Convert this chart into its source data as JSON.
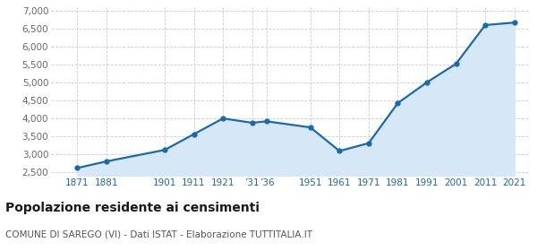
{
  "years": [
    1871,
    1881,
    1901,
    1911,
    1921,
    1931,
    1936,
    1951,
    1961,
    1971,
    1981,
    1991,
    2001,
    2011,
    2021
  ],
  "population": [
    2615,
    2800,
    3120,
    3560,
    4000,
    3880,
    3920,
    3750,
    3090,
    3310,
    4430,
    5010,
    5530,
    6610,
    6680
  ],
  "x_ticks_positions": [
    1871,
    1881,
    1901,
    1911,
    1921,
    1931,
    1936,
    1951,
    1961,
    1971,
    1981,
    1991,
    2001,
    2011,
    2021
  ],
  "x_tick_display": [
    "1871",
    "1881",
    "1901",
    "1911",
    "1921",
    "’31",
    "’36",
    "1951",
    "1961",
    "1971",
    "1981",
    "1991",
    "2001",
    "2011",
    "2021"
  ],
  "xlim": [
    1862,
    2026
  ],
  "ylim": [
    2400,
    7100
  ],
  "yticks": [
    2500,
    3000,
    3500,
    4000,
    4500,
    5000,
    5500,
    6000,
    6500,
    7000
  ],
  "line_color": "#1a6aab",
  "fill_color": "#d6e8f7",
  "marker": "o",
  "marker_size": 3.5,
  "line_width": 1.6,
  "title": "Popolazione residente ai censimenti",
  "subtitle": "COMUNE DI SAREGO (VI) - Dati ISTAT - Elaborazione TUTTITALIA.IT",
  "title_fontsize": 10,
  "subtitle_fontsize": 7.5,
  "grid_color": "#cccccc",
  "background_color": "#ffffff",
  "tick_label_color": "#1a6aab",
  "ytick_color": "#666666"
}
